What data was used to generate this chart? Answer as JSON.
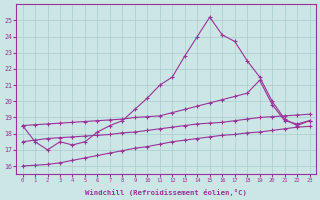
{
  "xlabel": "Windchill (Refroidissement éolien,°C)",
  "x_values": [
    0,
    1,
    2,
    3,
    4,
    5,
    6,
    7,
    8,
    9,
    10,
    11,
    12,
    13,
    14,
    15,
    16,
    17,
    18,
    19,
    20,
    21,
    22,
    23
  ],
  "series": [
    [
      18.5,
      17.5,
      17.0,
      17.5,
      17.3,
      17.5,
      18.1,
      18.5,
      18.8,
      19.5,
      20.2,
      21.0,
      21.5,
      22.8,
      24.0,
      25.2,
      24.1,
      23.7,
      22.5,
      21.5,
      20.0,
      18.9,
      18.5,
      18.8
    ],
    [
      18.5,
      18.55,
      18.6,
      18.65,
      18.7,
      18.75,
      18.8,
      18.85,
      18.9,
      19.0,
      19.05,
      19.1,
      19.3,
      19.5,
      19.7,
      19.9,
      20.1,
      20.3,
      20.5,
      21.3,
      19.8,
      18.8,
      18.6,
      18.8
    ],
    [
      17.5,
      17.6,
      17.7,
      17.75,
      17.8,
      17.85,
      17.9,
      17.95,
      18.05,
      18.1,
      18.2,
      18.3,
      18.4,
      18.5,
      18.6,
      18.65,
      18.7,
      18.8,
      18.9,
      19.0,
      19.05,
      19.1,
      19.15,
      19.2
    ],
    [
      16.0,
      16.05,
      16.1,
      16.2,
      16.35,
      16.5,
      16.65,
      16.8,
      16.95,
      17.1,
      17.2,
      17.35,
      17.5,
      17.6,
      17.7,
      17.8,
      17.9,
      17.95,
      18.05,
      18.1,
      18.2,
      18.3,
      18.4,
      18.45
    ]
  ],
  "color": "#993399",
  "bg_color": "#cce5e5",
  "grid_color": "#aacccc",
  "ylim": [
    15.5,
    26.0
  ],
  "xlim": [
    -0.5,
    23.5
  ],
  "yticks": [
    16,
    17,
    18,
    19,
    20,
    21,
    22,
    23,
    24,
    25
  ]
}
